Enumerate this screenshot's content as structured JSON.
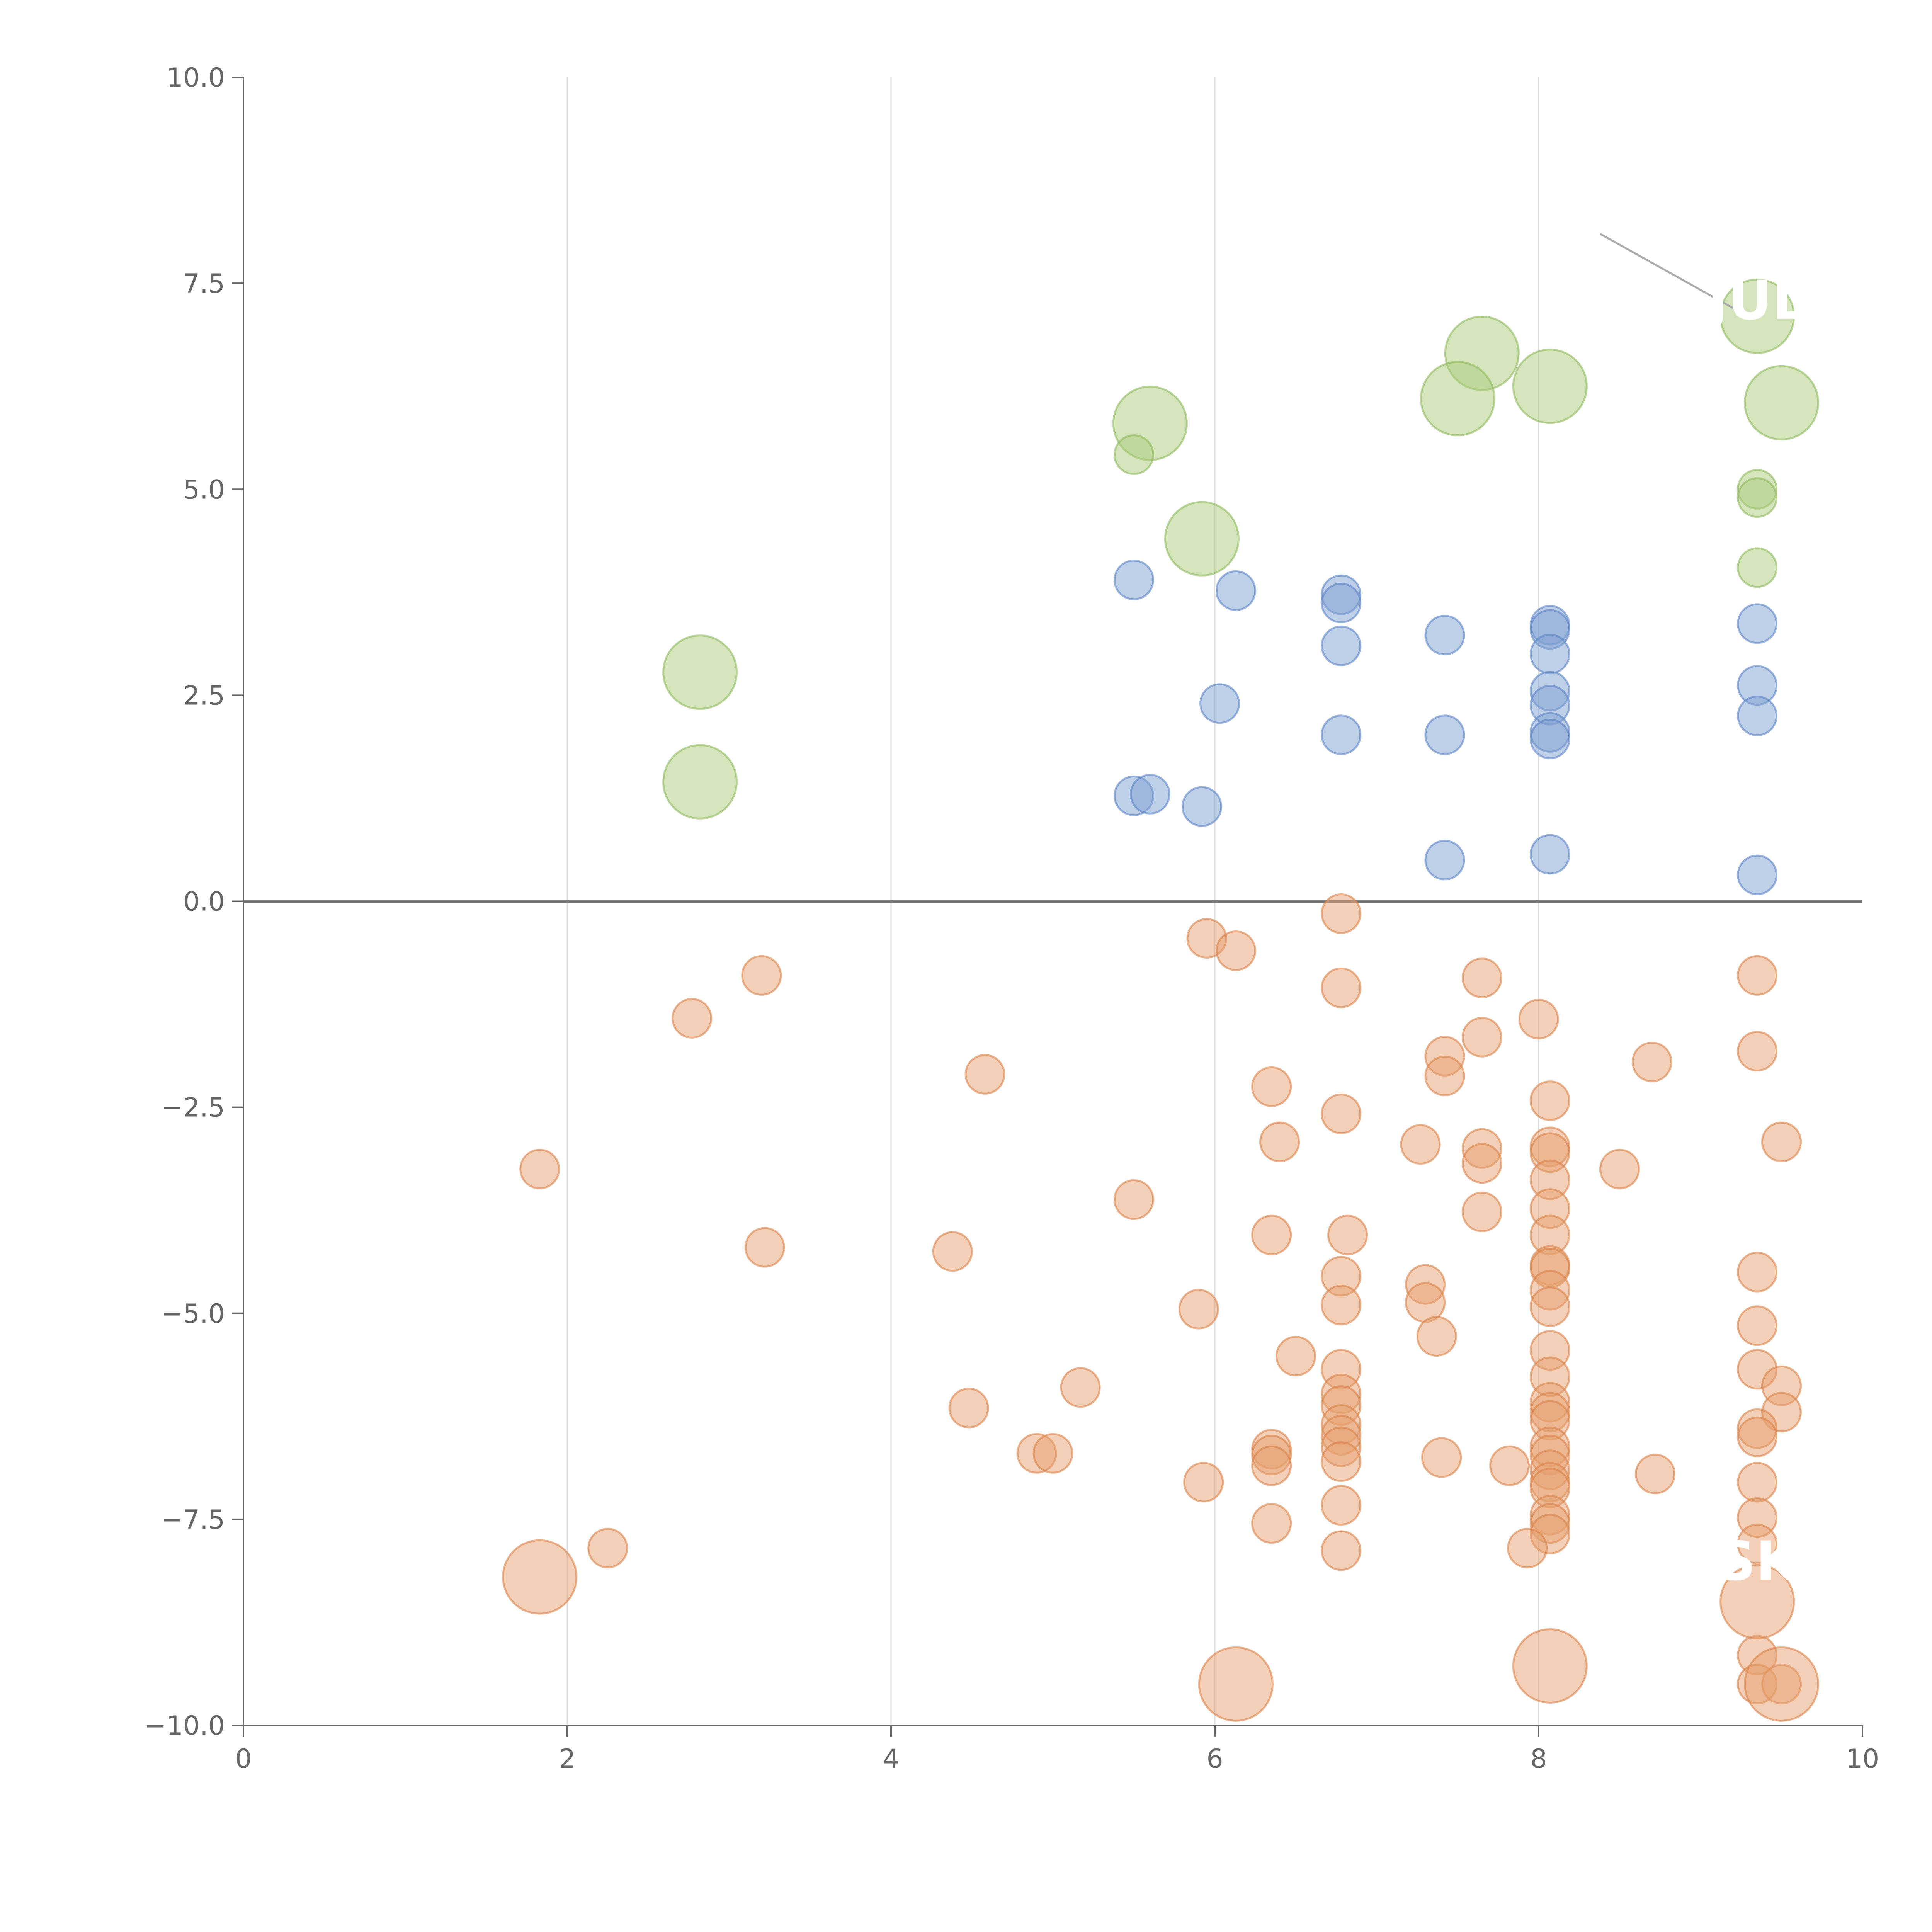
{
  "chart_data": {
    "type": "scatter",
    "title": "",
    "xlabel": "",
    "ylabel": "",
    "xlim": [
      0,
      10
    ],
    "ylim": [
      -10,
      10
    ],
    "grid": "vertical",
    "x_ticks": [
      0,
      2,
      4,
      6,
      8,
      10
    ],
    "x_tick_labels": [
      "0",
      "2",
      "4",
      "6",
      "8",
      "10"
    ],
    "y_ticks": [
      10,
      7.5,
      5,
      2.5,
      0,
      -2.5,
      -5,
      -7.5,
      -10
    ],
    "y_tick_labels": [
      "10.0",
      "7.5",
      "5.0",
      "2.5",
      "0.0",
      "−2.5",
      "−5.0",
      "−7.5",
      "−10.0"
    ],
    "colors": {
      "green": "#a9cc7a",
      "green_stroke": "#8fb85e",
      "blue": "#7d9fd2",
      "blue_stroke": "#5c84c4",
      "orange": "#e6a06e",
      "orange_stroke": "#d9824a"
    },
    "annotations": [
      {
        "text": "JUL",
        "x": 9.35,
        "y": 7.3
      },
      {
        "text": "SK",
        "x": 9.35,
        "y": -8.0
      }
    ],
    "series": [
      {
        "name": "green",
        "color": "#a9cc7a",
        "points": [
          [
            9.35,
            7.1,
            2
          ],
          [
            9.5,
            6.05,
            2
          ],
          [
            7.65,
            6.65,
            2
          ],
          [
            7.5,
            6.1,
            2
          ],
          [
            8.07,
            6.25,
            2
          ],
          [
            5.6,
            5.8,
            2
          ],
          [
            5.92,
            4.4,
            2
          ],
          [
            2.82,
            2.78,
            2
          ],
          [
            2.82,
            1.45,
            2
          ],
          [
            5.5,
            5.42,
            1
          ],
          [
            9.35,
            5.0,
            1
          ],
          [
            9.35,
            4.9,
            1
          ],
          [
            9.35,
            4.05,
            1
          ]
        ]
      },
      {
        "name": "blue",
        "color": "#7d9fd2",
        "points": [
          [
            5.5,
            3.9,
            1
          ],
          [
            6.13,
            3.77,
            1
          ],
          [
            6.78,
            3.72,
            1
          ],
          [
            6.78,
            3.62,
            1
          ],
          [
            6.78,
            3.1,
            1
          ],
          [
            7.42,
            3.23,
            1
          ],
          [
            8.07,
            3.35,
            1
          ],
          [
            8.07,
            3.3,
            1
          ],
          [
            8.07,
            3.0,
            1
          ],
          [
            8.07,
            2.55,
            1
          ],
          [
            8.07,
            2.38,
            1
          ],
          [
            8.07,
            2.05,
            1
          ],
          [
            8.07,
            1.97,
            1
          ],
          [
            9.35,
            3.37,
            1
          ],
          [
            9.35,
            2.62,
            1
          ],
          [
            9.35,
            2.25,
            1
          ],
          [
            6.03,
            2.4,
            1
          ],
          [
            6.78,
            2.02,
            1
          ],
          [
            7.42,
            2.02,
            1
          ],
          [
            5.5,
            1.28,
            1
          ],
          [
            5.6,
            1.3,
            1
          ],
          [
            5.92,
            1.15,
            1
          ],
          [
            7.42,
            0.5,
            1
          ],
          [
            8.07,
            0.57,
            1
          ],
          [
            9.35,
            0.32,
            1
          ]
        ]
      },
      {
        "name": "orange",
        "color": "#e6a06e",
        "points": [
          [
            6.78,
            -0.15,
            1
          ],
          [
            5.95,
            -0.45,
            1
          ],
          [
            6.13,
            -0.6,
            1
          ],
          [
            3.2,
            -0.9,
            1
          ],
          [
            2.77,
            -1.42,
            1
          ],
          [
            6.78,
            -1.05,
            1
          ],
          [
            7.65,
            -0.93,
            1
          ],
          [
            7.65,
            -1.65,
            1
          ],
          [
            9.35,
            -0.9,
            1
          ],
          [
            9.35,
            -1.82,
            1
          ],
          [
            8.0,
            -1.43,
            1
          ],
          [
            7.42,
            -1.88,
            1
          ],
          [
            7.42,
            -2.12,
            1
          ],
          [
            8.7,
            -1.95,
            1
          ],
          [
            4.58,
            -2.1,
            1
          ],
          [
            6.35,
            -2.25,
            1
          ],
          [
            6.4,
            -2.92,
            1
          ],
          [
            6.78,
            -2.58,
            1
          ],
          [
            7.27,
            -2.95,
            1
          ],
          [
            7.65,
            -3.0,
            1
          ],
          [
            7.65,
            -3.18,
            1
          ],
          [
            7.65,
            -3.77,
            1
          ],
          [
            8.07,
            -2.42,
            1
          ],
          [
            8.07,
            -2.98,
            1
          ],
          [
            8.07,
            -3.05,
            1
          ],
          [
            8.07,
            -3.38,
            1
          ],
          [
            8.07,
            -3.73,
            1
          ],
          [
            8.07,
            -4.05,
            1
          ],
          [
            8.07,
            -4.42,
            1
          ],
          [
            8.07,
            -4.45,
            1
          ],
          [
            8.07,
            -4.72,
            1
          ],
          [
            8.07,
            -4.92,
            1
          ],
          [
            8.5,
            -3.25,
            1
          ],
          [
            9.5,
            -2.92,
            1
          ],
          [
            1.83,
            -3.25,
            1
          ],
          [
            5.5,
            -3.62,
            1
          ],
          [
            3.22,
            -4.2,
            1
          ],
          [
            4.38,
            -4.25,
            1
          ],
          [
            6.35,
            -4.05,
            1
          ],
          [
            6.82,
            -4.05,
            1
          ],
          [
            6.78,
            -4.55,
            1
          ],
          [
            6.78,
            -4.9,
            1
          ],
          [
            7.3,
            -4.65,
            1
          ],
          [
            7.3,
            -4.87,
            1
          ],
          [
            7.37,
            -5.28,
            1
          ],
          [
            5.9,
            -4.95,
            1
          ],
          [
            6.5,
            -5.52,
            1
          ],
          [
            6.78,
            -5.68,
            1
          ],
          [
            6.78,
            -5.98,
            1
          ],
          [
            6.78,
            -6.12,
            1
          ],
          [
            6.78,
            -6.35,
            1
          ],
          [
            6.78,
            -6.48,
            1
          ],
          [
            6.78,
            -6.62,
            1
          ],
          [
            6.78,
            -6.8,
            1
          ],
          [
            6.78,
            -7.33,
            1
          ],
          [
            6.78,
            -7.88,
            1
          ],
          [
            8.07,
            -5.45,
            1
          ],
          [
            8.07,
            -5.77,
            1
          ],
          [
            8.07,
            -6.08,
            1
          ],
          [
            8.07,
            -6.2,
            1
          ],
          [
            8.07,
            -6.3,
            1
          ],
          [
            8.07,
            -6.62,
            1
          ],
          [
            8.07,
            -6.72,
            1
          ],
          [
            8.07,
            -6.9,
            1
          ],
          [
            8.07,
            -7.05,
            1
          ],
          [
            8.07,
            -7.12,
            1
          ],
          [
            8.07,
            -7.45,
            1
          ],
          [
            8.07,
            -7.55,
            1
          ],
          [
            8.07,
            -7.68,
            1
          ],
          [
            7.93,
            -7.85,
            1
          ],
          [
            7.82,
            -6.85,
            1
          ],
          [
            7.4,
            -6.75,
            1
          ],
          [
            8.72,
            -6.95,
            1
          ],
          [
            9.35,
            -4.5,
            1
          ],
          [
            9.35,
            -5.15,
            1
          ],
          [
            9.35,
            -5.68,
            1
          ],
          [
            9.5,
            -5.88,
            1
          ],
          [
            9.5,
            -6.2,
            1
          ],
          [
            9.35,
            -6.4,
            1
          ],
          [
            9.35,
            -6.5,
            1
          ],
          [
            9.35,
            -7.05,
            1
          ],
          [
            9.35,
            -7.48,
            1
          ],
          [
            9.35,
            -7.8,
            1
          ],
          [
            9.35,
            -9.15,
            1
          ],
          [
            9.35,
            -9.5,
            1
          ],
          [
            9.5,
            -9.5,
            1
          ],
          [
            5.17,
            -5.9,
            1
          ],
          [
            4.48,
            -6.15,
            1
          ],
          [
            4.9,
            -6.7,
            1
          ],
          [
            5.0,
            -6.7,
            1
          ],
          [
            5.93,
            -7.05,
            1
          ],
          [
            6.35,
            -6.65,
            1
          ],
          [
            6.35,
            -6.72,
            1
          ],
          [
            6.35,
            -6.85,
            1
          ],
          [
            6.35,
            -7.55,
            1
          ],
          [
            2.25,
            -7.85,
            1
          ],
          [
            1.83,
            -8.2,
            2
          ],
          [
            6.13,
            -9.5,
            2
          ],
          [
            8.07,
            -9.28,
            2
          ],
          [
            9.35,
            -8.5,
            2
          ],
          [
            9.5,
            -9.5,
            2
          ]
        ]
      }
    ]
  }
}
